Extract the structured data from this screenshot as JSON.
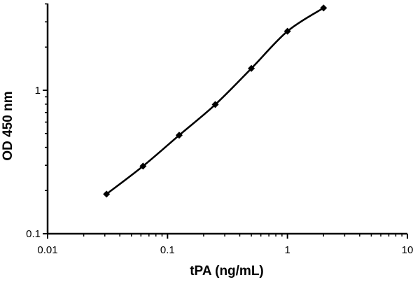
{
  "chart_data": {
    "type": "scatter",
    "xlabel": "tPA (ng/mL)",
    "ylabel": "OD 450 nm",
    "x_scale": "log",
    "y_scale": "log",
    "xlim": [
      0.01,
      10
    ],
    "ylim": [
      0.1,
      4
    ],
    "x_ticks": [
      0.01,
      0.1,
      1,
      10
    ],
    "x_tick_labels": [
      "0.01",
      "0.1",
      "1",
      "10"
    ],
    "y_ticks": [
      0.1,
      1
    ],
    "y_tick_labels": [
      "0.1",
      "1"
    ],
    "grid": false,
    "legend": "none",
    "series": [
      {
        "marker": "diamond",
        "line": "smooth",
        "color": "#000000",
        "x": [
          0.031,
          0.0625,
          0.125,
          0.25,
          0.5,
          1.0,
          2.0
        ],
        "y": [
          0.189,
          0.296,
          0.486,
          0.795,
          1.42,
          2.58,
          3.75
        ]
      }
    ]
  }
}
